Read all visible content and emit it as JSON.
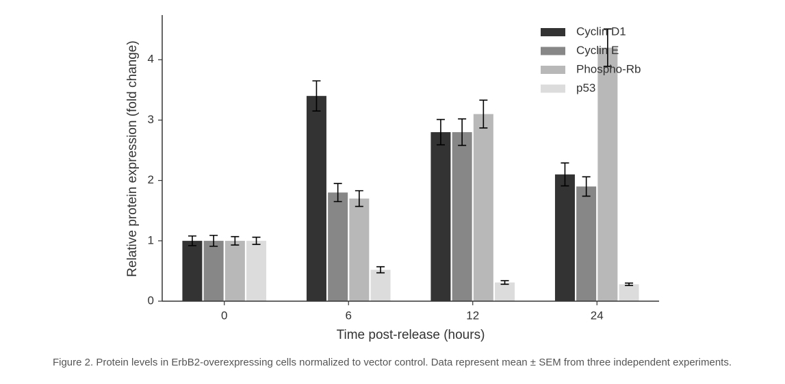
{
  "chart_data": {
    "type": "bar",
    "xlabel": "Time post-release (hours)",
    "ylabel": "Relative protein expression (fold change)",
    "caption": "Figure 2. Protein levels in ErbB2-overexpressing cells normalized to vector control. Data represent mean ± SEM from three independent experiments.",
    "categories": [
      "0",
      "6",
      "12",
      "24"
    ],
    "series": [
      {
        "name": "Cyclin D1",
        "color": "#333333",
        "values": [
          1.0,
          3.4,
          2.8,
          2.1
        ],
        "errors": [
          0.08,
          0.25,
          0.21,
          0.19
        ]
      },
      {
        "name": "Cyclin E",
        "color": "#878787",
        "values": [
          1.0,
          1.8,
          2.8,
          1.9
        ],
        "errors": [
          0.09,
          0.15,
          0.22,
          0.16
        ]
      },
      {
        "name": "Phospho-Rb",
        "color": "#b8b8b8",
        "values": [
          1.0,
          1.7,
          3.1,
          4.2
        ],
        "errors": [
          0.07,
          0.13,
          0.23,
          0.31
        ]
      },
      {
        "name": "p53",
        "color": "#dcdcdc",
        "values": [
          1.0,
          0.52,
          0.31,
          0.28
        ],
        "errors": [
          0.06,
          0.05,
          0.03,
          0.02
        ]
      }
    ],
    "ylim": [
      0,
      4.74
    ],
    "yticks": [
      0,
      1,
      2,
      3,
      4
    ],
    "grid": false,
    "legend": "upper right"
  }
}
